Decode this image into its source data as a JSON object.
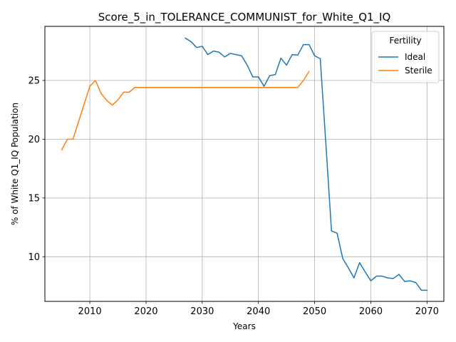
{
  "chart_data": {
    "type": "line",
    "title": "Score_5_in_TOLERANCE_COMMUNIST_for_White_Q1_IQ",
    "xlabel": "Years",
    "ylabel": "% of White Q1_IQ Population",
    "xlim": [
      2002,
      2073
    ],
    "ylim": [
      6.2,
      29.6
    ],
    "xticks": [
      2010,
      2020,
      2030,
      2040,
      2050,
      2060,
      2070
    ],
    "yticks": [
      10,
      15,
      20,
      25
    ],
    "grid": true,
    "legend": {
      "title": "Fertility",
      "placement": "top-right",
      "entries": [
        "Ideal",
        "Sterile"
      ]
    },
    "series": [
      {
        "name": "Ideal",
        "color": "#1f77b4",
        "x": [
          2027,
          2028,
          2029,
          2030,
          2031,
          2032,
          2033,
          2034,
          2035,
          2036,
          2037,
          2038,
          2039,
          2040,
          2041,
          2042,
          2043,
          2044,
          2045,
          2046,
          2047,
          2048,
          2049,
          2050,
          2051,
          2052,
          2053,
          2054,
          2055,
          2056,
          2057,
          2058,
          2059,
          2060,
          2061,
          2062,
          2063,
          2064,
          2065,
          2066,
          2067,
          2068,
          2069,
          2070
        ],
        "values": [
          28.6,
          28.3,
          27.8,
          27.9,
          27.2,
          27.5,
          27.4,
          27.0,
          27.3,
          27.2,
          27.1,
          26.3,
          25.3,
          25.3,
          24.5,
          25.4,
          25.5,
          26.9,
          26.3,
          27.2,
          27.15,
          28.05,
          28.05,
          27.1,
          26.85,
          19.6,
          12.2,
          12.0,
          9.85,
          9.05,
          8.2,
          9.5,
          8.7,
          7.95,
          8.35,
          8.35,
          8.2,
          8.15,
          8.5,
          7.9,
          7.95,
          7.8,
          7.15,
          7.15
        ]
      },
      {
        "name": "Sterile",
        "color": "#ff7f0e",
        "x": [
          2005,
          2006,
          2007,
          2008,
          2009,
          2010,
          2011,
          2012,
          2013,
          2014,
          2015,
          2016,
          2017,
          2018,
          2019,
          2020,
          2021,
          2022,
          2023,
          2024,
          2025,
          2026,
          2027,
          2028,
          2029,
          2030,
          2031,
          2032,
          2033,
          2034,
          2035,
          2036,
          2037,
          2038,
          2039,
          2040,
          2041,
          2042,
          2043,
          2044,
          2045,
          2046,
          2047,
          2048,
          2049
        ],
        "values": [
          19.1,
          20.0,
          20.0,
          21.5,
          23.0,
          24.5,
          25.0,
          23.9,
          23.3,
          22.9,
          23.35,
          24.0,
          24.0,
          24.4,
          24.4,
          24.4,
          24.4,
          24.4,
          24.4,
          24.4,
          24.4,
          24.4,
          24.4,
          24.4,
          24.4,
          24.4,
          24.4,
          24.4,
          24.4,
          24.4,
          24.4,
          24.4,
          24.4,
          24.4,
          24.4,
          24.4,
          24.4,
          24.4,
          24.4,
          24.4,
          24.4,
          24.4,
          24.4,
          25.0,
          25.75
        ]
      }
    ]
  }
}
